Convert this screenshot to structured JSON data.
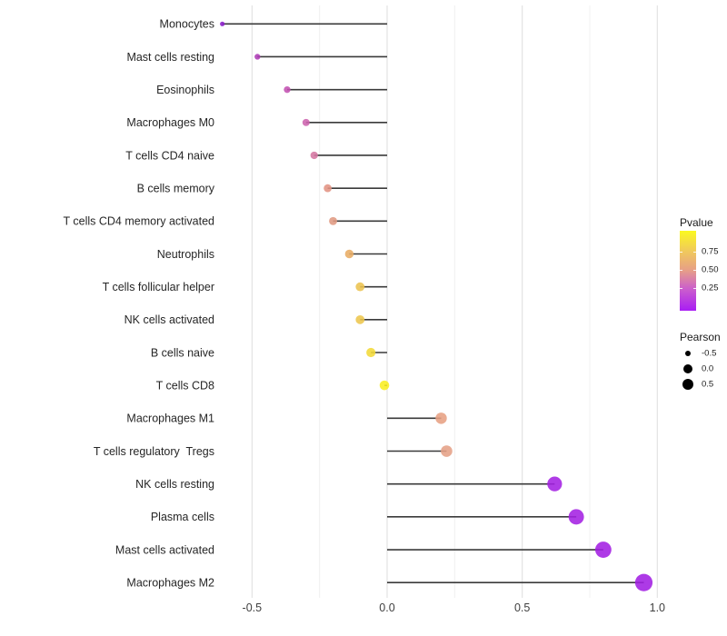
{
  "chart_data": {
    "type": "scatter",
    "variant": "lollipop",
    "title": "",
    "xlabel": "",
    "ylabel": "",
    "x_tick_labels": [
      "-0.5",
      "0.0",
      "0.5",
      "1.0"
    ],
    "x_tick_values": [
      -0.5,
      0.0,
      0.5,
      1.0
    ],
    "x_minor_tick_values": [
      -0.25,
      0.25,
      0.75
    ],
    "xlim": [
      -0.68,
      1.06
    ],
    "grid": true,
    "points": [
      {
        "label": "Monocytes",
        "pearson": -0.61,
        "color": "#8A1DC9"
      },
      {
        "label": "Mast cells resting",
        "pearson": -0.48,
        "color": "#AE3CB6"
      },
      {
        "label": "Eosinophils",
        "pearson": -0.37,
        "color": "#C351B2"
      },
      {
        "label": "Macrophages M0",
        "pearson": -0.3,
        "color": "#CD63AE"
      },
      {
        "label": "T cells CD4 naive",
        "pearson": -0.27,
        "color": "#D576A2"
      },
      {
        "label": "B cells memory",
        "pearson": -0.22,
        "color": "#E29383"
      },
      {
        "label": "T cells CD4 memory activated",
        "pearson": -0.2,
        "color": "#E09A82"
      },
      {
        "label": "Neutrophils",
        "pearson": -0.14,
        "color": "#E8AC64"
      },
      {
        "label": "T cells follicular helper",
        "pearson": -0.1,
        "color": "#ECC350"
      },
      {
        "label": "NK cells activated",
        "pearson": -0.1,
        "color": "#EDC64D"
      },
      {
        "label": "B cells naive",
        "pearson": -0.06,
        "color": "#F3DA38"
      },
      {
        "label": "T cells CD8",
        "pearson": -0.01,
        "color": "#F9EE21"
      },
      {
        "label": "Macrophages M1",
        "pearson": 0.2,
        "color": "#E7A083"
      },
      {
        "label": "T cells regulatory  Tregs",
        "pearson": 0.22,
        "color": "#E5A186"
      },
      {
        "label": "NK cells resting",
        "pearson": 0.62,
        "color": "#A421E2"
      },
      {
        "label": "Plasma cells",
        "pearson": 0.7,
        "color": "#A421E2"
      },
      {
        "label": "Mast cells activated",
        "pearson": 0.8,
        "color": "#A31FE3"
      },
      {
        "label": "Macrophages M2",
        "pearson": 0.95,
        "color": "#A21FE3"
      }
    ],
    "legend": {
      "pvalue": {
        "title": "Pvalue",
        "tick_labels": [
          "0.75",
          "0.50",
          "0.25"
        ],
        "tick_offsets_pct": [
          25.8,
          48.9,
          72.0
        ],
        "gradient_top_to_bottom": [
          "#FBF920",
          "#F0C85D",
          "#E7A086",
          "#CC60CB",
          "#A91DF4"
        ],
        "gradient_positions_pct": [
          0,
          26,
          49,
          72,
          100
        ]
      },
      "pearson": {
        "title": "Pearson",
        "items": [
          {
            "label": "-0.5",
            "value": -0.5,
            "diameter": 6
          },
          {
            "label": "0.0",
            "value": 0.0,
            "diameter": 10
          },
          {
            "label": "0.5",
            "value": 0.5,
            "diameter": 12
          }
        ],
        "dot_color": "#000000"
      }
    },
    "style_colors": {
      "stem": "#3a3a3a",
      "grid_major": "#e3e3e3",
      "grid_minor": "#f0f0f0",
      "axis_tick_text": "#404040",
      "category_text": "#262626",
      "background": "#ffffff"
    }
  }
}
